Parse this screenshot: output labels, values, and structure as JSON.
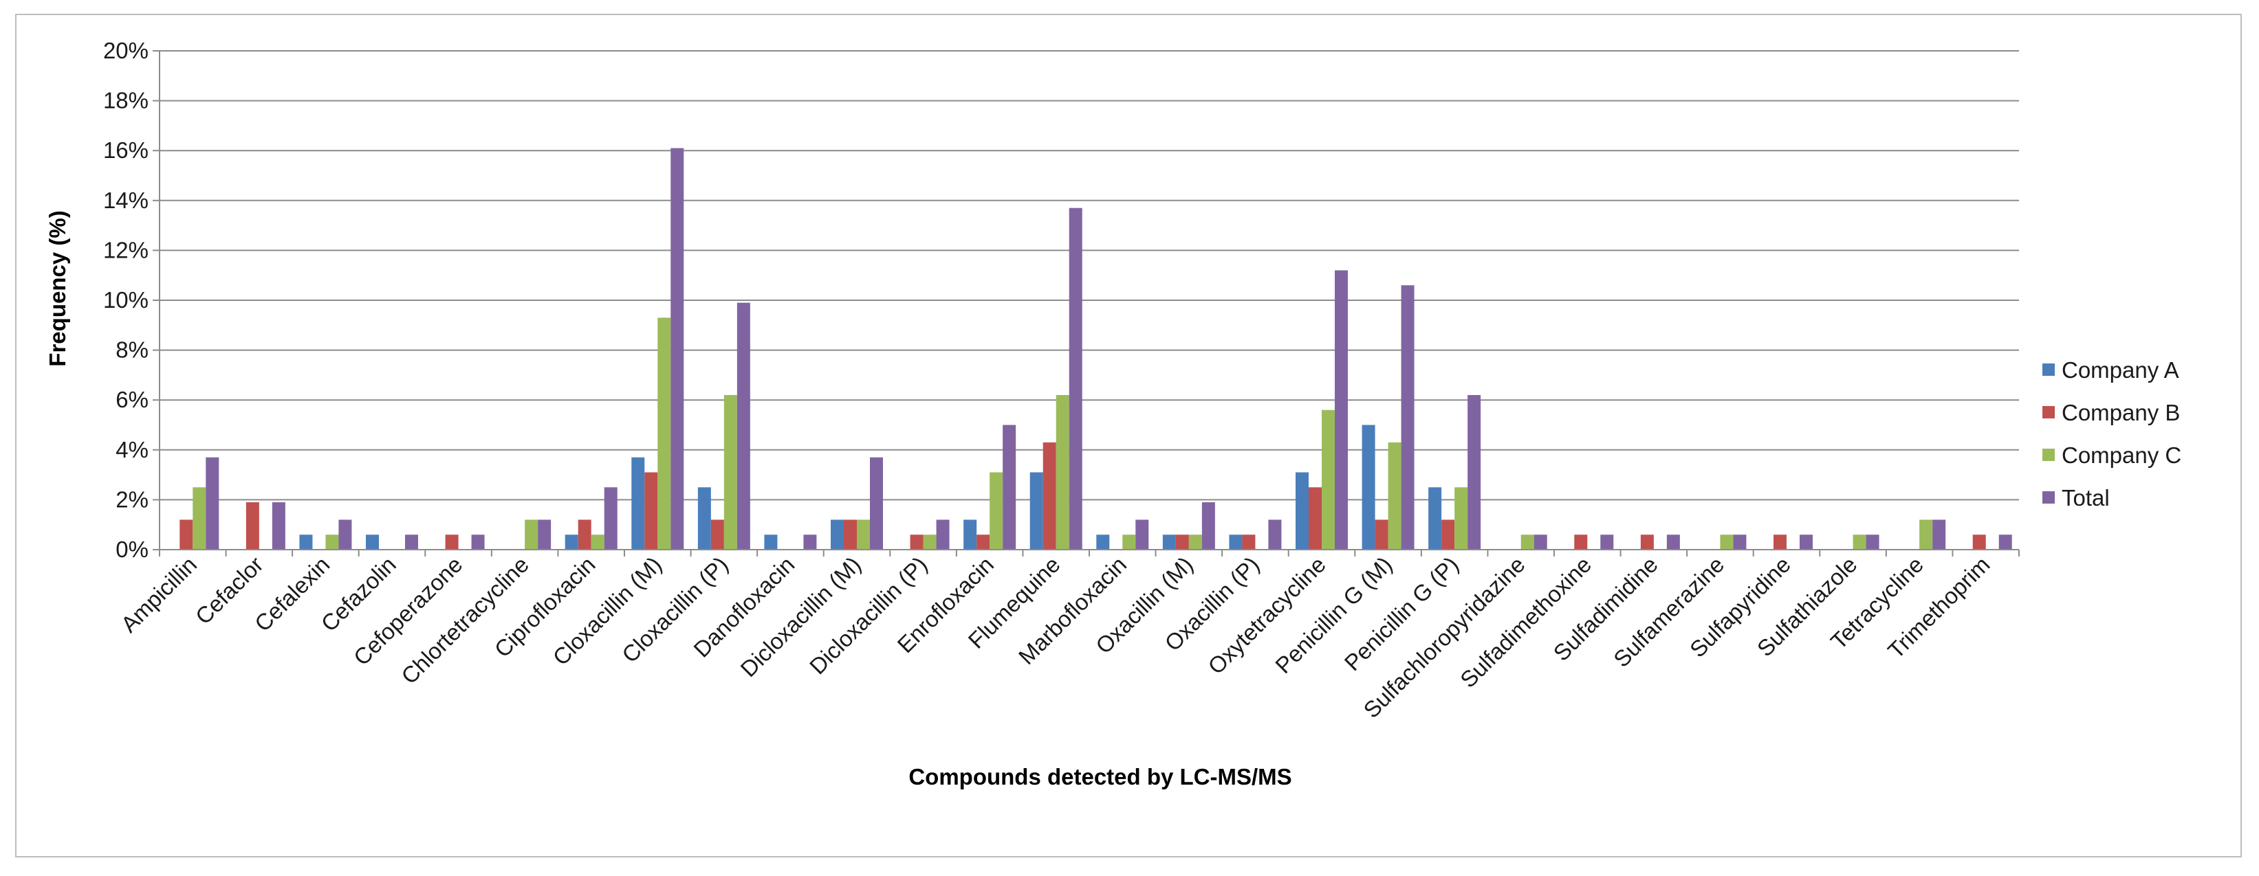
{
  "chart_data": {
    "type": "bar",
    "title": "",
    "xlabel": "Compounds detected by LC-MS/MS",
    "ylabel": "Frequency (%)",
    "ylim": [
      0,
      20
    ],
    "yticks": [
      "0%",
      "2%",
      "4%",
      "6%",
      "8%",
      "10%",
      "12%",
      "14%",
      "16%",
      "18%",
      "20%"
    ],
    "legend_position": "right",
    "categories": [
      "Ampicillin",
      "Cefaclor",
      "Cefalexin",
      "Cefazolin",
      "Cefoperazone",
      "Chlortetracycline",
      "Ciprofloxacin",
      "Cloxacillin (M)",
      "Cloxacillin (P)",
      "Danofloxacin",
      "Dicloxacillin (M)",
      "Dicloxacillin (P)",
      "Enrofloxacin",
      "Flumequine",
      "Marbofloxacin",
      "Oxacillin (M)",
      "Oxacillin (P)",
      "Oxytetracycline",
      "Penicillin G (M)",
      "Penicillin G (P)",
      "Sulfachloropyridazine",
      "Sulfadimethoxine",
      "Sulfadimidine",
      "Sulfamerazine",
      "Sulfapyridine",
      "Sulfathiazole",
      "Tetracycline",
      "Trimethoprim"
    ],
    "series": [
      {
        "name": "Company A",
        "color": "#4a7ebb",
        "values": [
          0,
          0,
          0.6,
          0.6,
          0,
          0,
          0.6,
          3.7,
          2.5,
          0.6,
          1.2,
          0,
          1.2,
          3.1,
          0.6,
          0.6,
          0.6,
          3.1,
          5.0,
          2.5,
          0,
          0,
          0,
          0,
          0,
          0,
          0,
          0
        ]
      },
      {
        "name": "Company B",
        "color": "#c0504d",
        "values": [
          1.2,
          1.9,
          0,
          0,
          0.6,
          0,
          1.2,
          3.1,
          1.2,
          0,
          1.2,
          0.6,
          0.6,
          4.3,
          0,
          0.6,
          0.6,
          2.5,
          1.2,
          1.2,
          0,
          0.6,
          0.6,
          0,
          0.6,
          0,
          0,
          0.6
        ]
      },
      {
        "name": "Company C",
        "color": "#9bbb59",
        "values": [
          2.5,
          0,
          0.6,
          0,
          0,
          1.2,
          0.6,
          9.3,
          6.2,
          0,
          1.2,
          0.6,
          3.1,
          6.2,
          0.6,
          0.6,
          0,
          5.6,
          4.3,
          2.5,
          0.6,
          0,
          0,
          0.6,
          0,
          0.6,
          1.2,
          0
        ]
      },
      {
        "name": "Total",
        "color": "#8064a2",
        "values": [
          3.7,
          1.9,
          1.2,
          0.6,
          0.6,
          1.2,
          2.5,
          16.1,
          9.9,
          0.6,
          3.7,
          1.2,
          5.0,
          13.7,
          1.2,
          1.9,
          1.2,
          11.2,
          10.6,
          6.2,
          0.6,
          0.6,
          0.6,
          0.6,
          0.6,
          0.6,
          1.2,
          0.6
        ]
      }
    ]
  }
}
